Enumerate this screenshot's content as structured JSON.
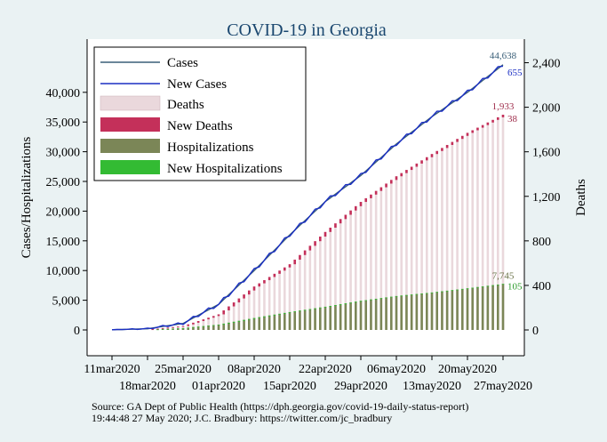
{
  "chart_data": {
    "type": "bar",
    "title": "COVID-19 in Georgia",
    "ylabel": "Cases/Hospitalizations",
    "y2label": "Deaths",
    "ylim": [
      0,
      45000
    ],
    "y2lim": [
      0,
      2700
    ],
    "y_ticks": [
      "0",
      "5,000",
      "10,000",
      "15,000",
      "20,000",
      "25,000",
      "30,000",
      "35,000",
      "40,000"
    ],
    "y_tick_values": [
      0,
      5000,
      10000,
      15000,
      20000,
      25000,
      30000,
      35000,
      40000
    ],
    "y2_ticks": [
      "0",
      "400",
      "800",
      "1,200",
      "1,600",
      "2,000",
      "2,400"
    ],
    "y2_tick_values": [
      0,
      400,
      800,
      1200,
      1600,
      2000,
      2400
    ],
    "x_ticks_upper": [
      "11mar2020",
      "25mar2020",
      "08apr2020",
      "22apr2020",
      "06may2020",
      "20may2020"
    ],
    "x_ticks_lower": [
      "18mar2020",
      "01apr2020",
      "15apr2020",
      "29apr2020",
      "13may2020",
      "27may2020"
    ],
    "x_range": [
      "11mar2020",
      "27may2020"
    ],
    "legend": [
      "Cases",
      "New Cases",
      "Deaths",
      "New Deaths",
      "Hospitalizations",
      "New Hospitalizations"
    ],
    "colors": {
      "cases": "#3a5f78",
      "new_cases": "#1b2fc4",
      "deaths": "#ead8dc",
      "new_deaths": "#c4305a",
      "hospitalizations": "#7b8657",
      "new_hospitalizations": "#33bb33",
      "panel": "#ffffff",
      "background": "#eaf2f3"
    },
    "series": [
      {
        "name": "Cases",
        "x": [
          "11mar2020",
          "18mar2020",
          "25mar2020",
          "01apr2020",
          "08apr2020",
          "15apr2020",
          "22apr2020",
          "29apr2020",
          "06may2020",
          "13may2020",
          "20may2020",
          "27may2020"
        ],
        "values": [
          30,
          200,
          1100,
          4300,
          10000,
          16000,
          21600,
          26000,
          31300,
          35900,
          40000,
          44638
        ]
      },
      {
        "name": "Deaths",
        "x": [
          "11mar2020",
          "18mar2020",
          "25mar2020",
          "01apr2020",
          "08apr2020",
          "15apr2020",
          "22apr2020",
          "29apr2020",
          "06may2020",
          "13may2020",
          "20may2020",
          "27may2020"
        ],
        "values": [
          0,
          3,
          35,
          140,
          390,
          590,
          880,
          1150,
          1380,
          1580,
          1770,
          1933
        ]
      },
      {
        "name": "Hospitalizations",
        "x": [
          "11mar2020",
          "18mar2020",
          "25mar2020",
          "01apr2020",
          "08apr2020",
          "15apr2020",
          "22apr2020",
          "29apr2020",
          "06may2020",
          "13may2020",
          "20may2020",
          "27may2020"
        ],
        "values": [
          0,
          10,
          300,
          900,
          2000,
          3000,
          3900,
          4900,
          5700,
          6300,
          7000,
          7745
        ]
      }
    ],
    "end_labels": {
      "cases": "44,638",
      "new_cases": "655",
      "deaths": "1,933",
      "new_deaths": "38",
      "hospitalizations": "7,745",
      "new_hospitalizations": "105"
    },
    "grid": false,
    "legend_position": "top-left"
  },
  "note": {
    "line1": "Source: GA Dept of Public Health (https://dph.georgia.gov/covid-19-daily-status-report)",
    "line2": "19:44:48  27 May 2020; J.C. Bradbury: https://twitter.com/jc_bradbury"
  }
}
